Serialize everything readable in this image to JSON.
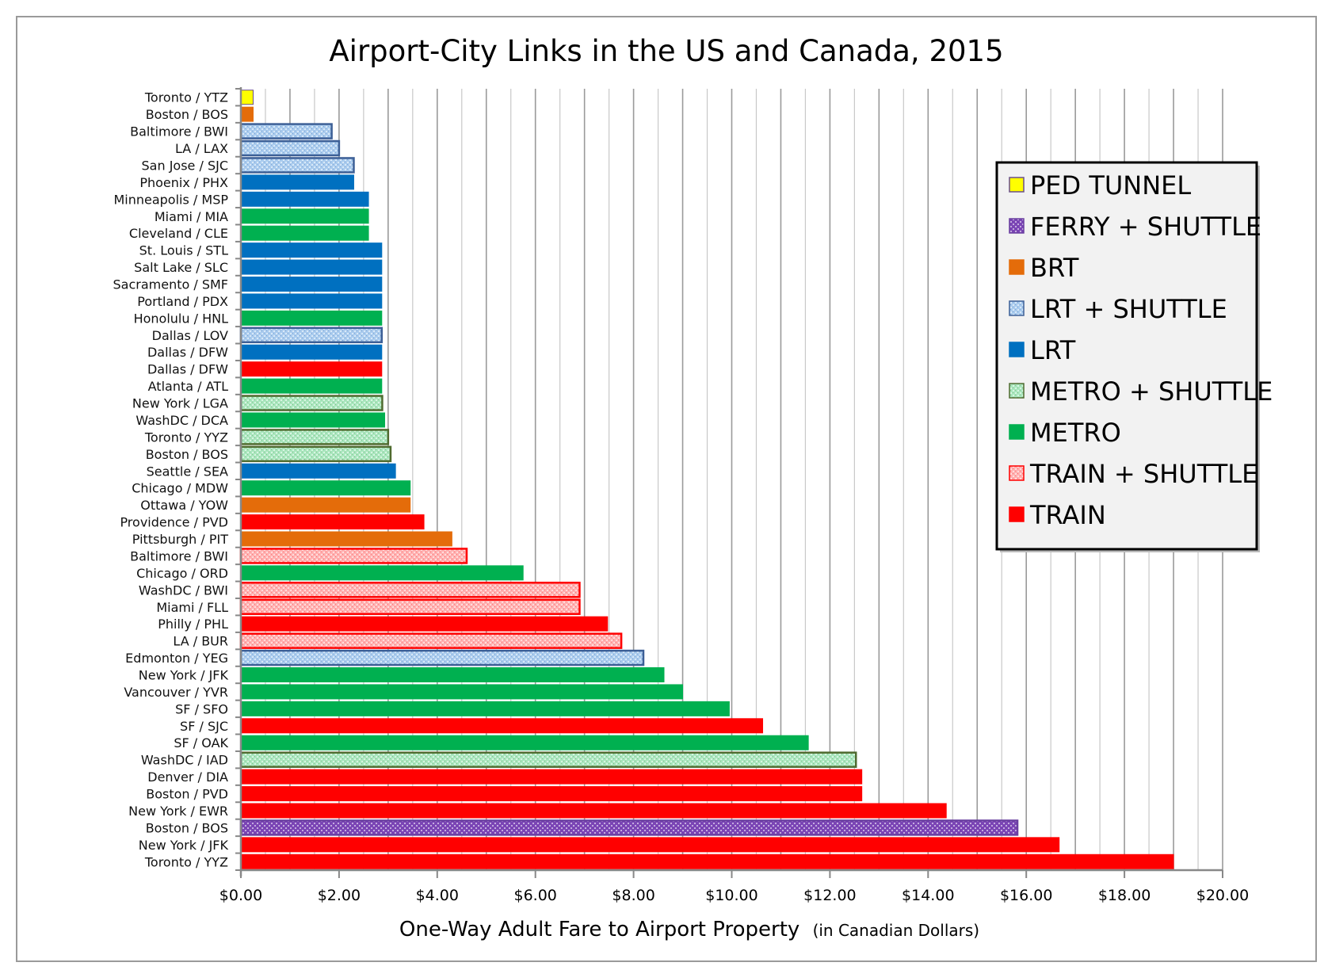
{
  "chart_data": {
    "type": "bar",
    "orientation": "horizontal",
    "title": "Airport-City Links in the US and Canada, 2015",
    "xlabel": "One-Way Adult Fare to Airport Property",
    "xlabel_note": "(in Canadian Dollars)",
    "ylabel": "",
    "xlim": [
      0,
      20
    ],
    "x_ticks": [
      "$0.00",
      "$2.00",
      "$4.00",
      "$6.00",
      "$8.00",
      "$10.00",
      "$12.00",
      "$14.00",
      "$16.00",
      "$18.00",
      "$20.00"
    ],
    "x_tick_values": [
      0,
      2,
      4,
      6,
      8,
      10,
      12,
      14,
      16,
      18,
      20
    ],
    "minor_grid_step": 0.5,
    "grid": true,
    "legend_position": "right",
    "legend": [
      {
        "key": "ped_tunnel",
        "label": "PED TUNNEL",
        "fill": "#ffff00",
        "border": "#6a4f8a",
        "pattern": false
      },
      {
        "key": "ferry_shuttle",
        "label": "FERRY + SHUTTLE",
        "fill": "#7b45b5",
        "border": "#6a3fa0",
        "pattern": true
      },
      {
        "key": "brt",
        "label": "BRT",
        "fill": "#e46c0a",
        "border": "#e46c0a",
        "pattern": false
      },
      {
        "key": "lrt_shuttle",
        "label": "LRT + SHUTTLE",
        "fill": "#a9cbee",
        "border": "#3c5f96",
        "pattern": true
      },
      {
        "key": "lrt",
        "label": "LRT",
        "fill": "#0070c0",
        "border": "#0070c0",
        "pattern": false
      },
      {
        "key": "metro_shuttle",
        "label": "METRO + SHUTTLE",
        "fill": "#a8e6bd",
        "border": "#4f6b2f",
        "pattern": true
      },
      {
        "key": "metro",
        "label": "METRO",
        "fill": "#00b050",
        "border": "#00b050",
        "pattern": false
      },
      {
        "key": "train_shuttle",
        "label": "TRAIN + SHUTTLE",
        "fill": "#ffb0b0",
        "border": "#ff0000",
        "pattern": true
      },
      {
        "key": "train",
        "label": "TRAIN",
        "fill": "#ff0000",
        "border": "#ff0000",
        "pattern": false
      }
    ],
    "categories": [
      "Toronto / YTZ",
      "Boston / BOS",
      "Baltimore / BWI",
      "LA / LAX",
      "San Jose / SJC",
      "Phoenix / PHX",
      "Minneapolis / MSP",
      "Miami / MIA",
      "Cleveland / CLE",
      "St. Louis / STL",
      "Salt Lake / SLC",
      "Sacramento / SMF",
      "Portland / PDX",
      "Honolulu / HNL",
      "Dallas / LOV",
      "Dallas / DFW",
      "Dallas / DFW",
      "Atlanta / ATL",
      "New York / LGA",
      "WashDC / DCA",
      "Toronto / YYZ",
      "Boston / BOS",
      "Seattle / SEA",
      "Chicago / MDW",
      "Ottawa / YOW",
      "Providence / PVD",
      "Pittsburgh / PIT",
      "Baltimore / BWI",
      "Chicago / ORD",
      "WashDC / BWI",
      "Miami / FLL",
      "Philly / PHL",
      "LA / BUR",
      "Edmonton / YEG",
      "New York / JFK",
      "Vancouver / YVR",
      "SF / SFO",
      "SF / SJC",
      "SF / OAK",
      "WashDC / IAD",
      "Denver / DIA",
      "Boston / PVD",
      "New York / EWR",
      "Boston / BOS",
      "New York / JFK",
      "Toronto / YYZ"
    ],
    "values": [
      0.25,
      0.25,
      1.85,
      2.0,
      2.3,
      2.3,
      2.6,
      2.6,
      2.6,
      2.87,
      2.87,
      2.87,
      2.87,
      2.87,
      2.87,
      2.87,
      2.87,
      2.87,
      2.88,
      2.93,
      3.0,
      3.05,
      3.15,
      3.45,
      3.45,
      3.73,
      4.3,
      4.6,
      5.75,
      6.9,
      6.9,
      7.47,
      7.75,
      8.2,
      8.62,
      9.0,
      9.95,
      10.63,
      11.56,
      12.53,
      12.65,
      12.65,
      14.37,
      15.82,
      16.67,
      19.0
    ],
    "modes": [
      "ped_tunnel",
      "brt",
      "lrt_shuttle",
      "lrt_shuttle",
      "lrt_shuttle",
      "lrt",
      "lrt",
      "metro",
      "metro",
      "lrt",
      "lrt",
      "lrt",
      "lrt",
      "metro",
      "lrt_shuttle",
      "lrt",
      "train",
      "metro",
      "metro_shuttle",
      "metro",
      "metro_shuttle",
      "metro_shuttle",
      "lrt",
      "metro",
      "brt",
      "train",
      "brt",
      "train_shuttle",
      "metro",
      "train_shuttle",
      "train_shuttle",
      "train",
      "train_shuttle",
      "lrt_shuttle",
      "metro",
      "metro",
      "metro",
      "train",
      "metro",
      "metro_shuttle",
      "train",
      "train",
      "train",
      "ferry_shuttle",
      "train",
      "train"
    ]
  }
}
